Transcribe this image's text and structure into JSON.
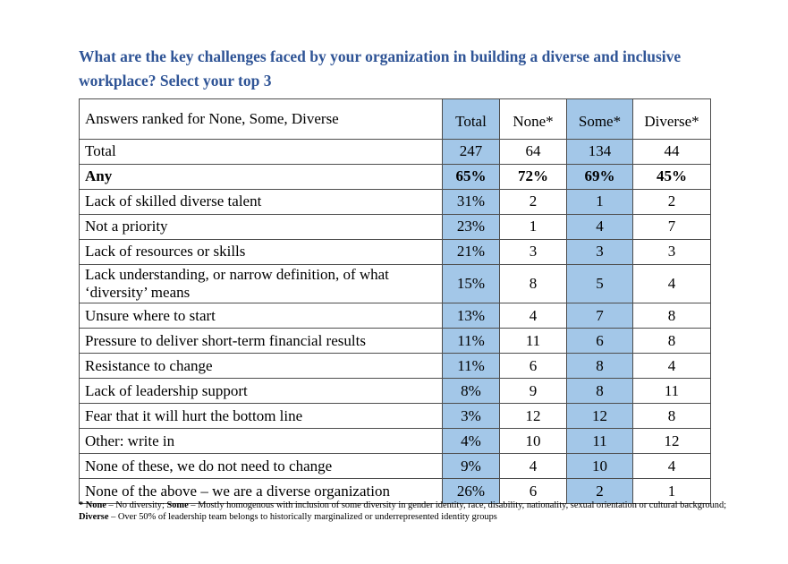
{
  "title": {
    "text": "What are the key challenges faced by your organization in building a diverse and inclusive workplace? Select your top 3",
    "color": "#2F5496"
  },
  "table": {
    "highlight_color": "#A3C7E8",
    "highlighted_value_columns": [
      0,
      2
    ],
    "header": {
      "label": "Answers ranked for None, Some, Diverse",
      "columns": [
        "Total",
        "None*",
        "Some*",
        "Diverse*"
      ]
    },
    "rows": [
      {
        "label": "Total",
        "bold": false,
        "values": [
          "247",
          "64",
          "134",
          "44"
        ]
      },
      {
        "label": "Any",
        "bold": true,
        "values": [
          "65%",
          "72%",
          "69%",
          "45%"
        ]
      },
      {
        "label": "Lack of skilled diverse talent",
        "bold": false,
        "values": [
          "31%",
          "2",
          "1",
          "2"
        ]
      },
      {
        "label": "Not a priority",
        "bold": false,
        "values": [
          "23%",
          "1",
          "4",
          "7"
        ]
      },
      {
        "label": "Lack of resources or skills",
        "bold": false,
        "values": [
          "21%",
          "3",
          "3",
          "3"
        ]
      },
      {
        "label": "Lack understanding, or narrow definition, of what ‘diversity’ means",
        "bold": false,
        "values": [
          "15%",
          "8",
          "5",
          "4"
        ]
      },
      {
        "label": "Unsure where to start",
        "bold": false,
        "values": [
          "13%",
          "4",
          "7",
          "8"
        ]
      },
      {
        "label": "Pressure to deliver short-term financial results",
        "bold": false,
        "values": [
          "11%",
          "11",
          "6",
          "8"
        ]
      },
      {
        "label": "Resistance to change",
        "bold": false,
        "values": [
          "11%",
          "6",
          "8",
          "4"
        ]
      },
      {
        "label": "Lack of leadership support",
        "bold": false,
        "values": [
          "8%",
          "9",
          "8",
          "11"
        ]
      },
      {
        "label": "Fear that it will hurt the bottom line",
        "bold": false,
        "values": [
          "3%",
          "12",
          "12",
          "8"
        ]
      },
      {
        "label": "Other: write in",
        "bold": false,
        "values": [
          "4%",
          "10",
          "11",
          "12"
        ]
      },
      {
        "label": "None of these, we do not need to change",
        "bold": false,
        "values": [
          "9%",
          "4",
          "10",
          "4"
        ]
      },
      {
        "label": "None of the above – we are a diverse organization",
        "bold": false,
        "values": [
          "26%",
          "6",
          "2",
          "1"
        ]
      }
    ]
  },
  "footnote": {
    "lines": [
      [
        {
          "text": "* None",
          "bold": true
        },
        {
          "text": " – No diversity; ",
          "bold": false
        },
        {
          "text": "Some",
          "bold": true
        },
        {
          "text": " – Mostly homogenous with inclusion of some diversity in gender identity, race, disability, nationality, sexual orientation or cultural background;",
          "bold": false
        }
      ],
      [
        {
          "text": "Diverse",
          "bold": true
        },
        {
          "text": " – Over 50% of leadership team belongs to historically marginalized or underrepresented identity groups",
          "bold": false
        }
      ]
    ]
  }
}
